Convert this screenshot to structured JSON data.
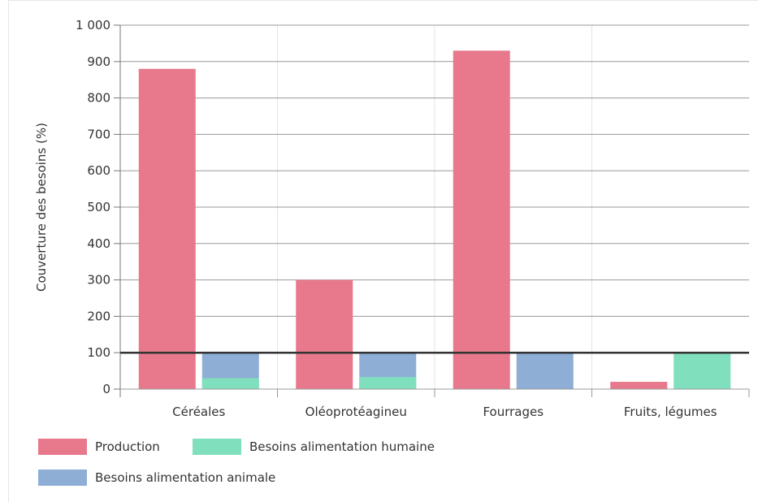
{
  "chart_data": {
    "type": "bar",
    "title": "",
    "xlabel": "",
    "ylabel": "Couverture des besoins (%)",
    "ylim": [
      0,
      1000
    ],
    "yticks": [
      "0",
      "100",
      "200",
      "300",
      "400",
      "500",
      "600",
      "700",
      "800",
      "900",
      "1 000"
    ],
    "categories": [
      "Céréales",
      "Oléoprotéagineu",
      "Fourrages",
      "Fruits, légumes"
    ],
    "series": [
      {
        "name": "Production",
        "color": "#e8788c",
        "values": [
          880,
          300,
          930,
          20
        ]
      },
      {
        "name": "Besoins alimentation animale",
        "color": "#8eaed6",
        "values": [
          100,
          100,
          100,
          null
        ]
      },
      {
        "name": "Besoins alimentation humaine",
        "color": "#80dfbd",
        "values": [
          30,
          33,
          null,
          100
        ]
      }
    ],
    "reference_line": {
      "value": 100,
      "color": "#333333"
    },
    "grid": true,
    "legend_position": "bottom-left"
  }
}
